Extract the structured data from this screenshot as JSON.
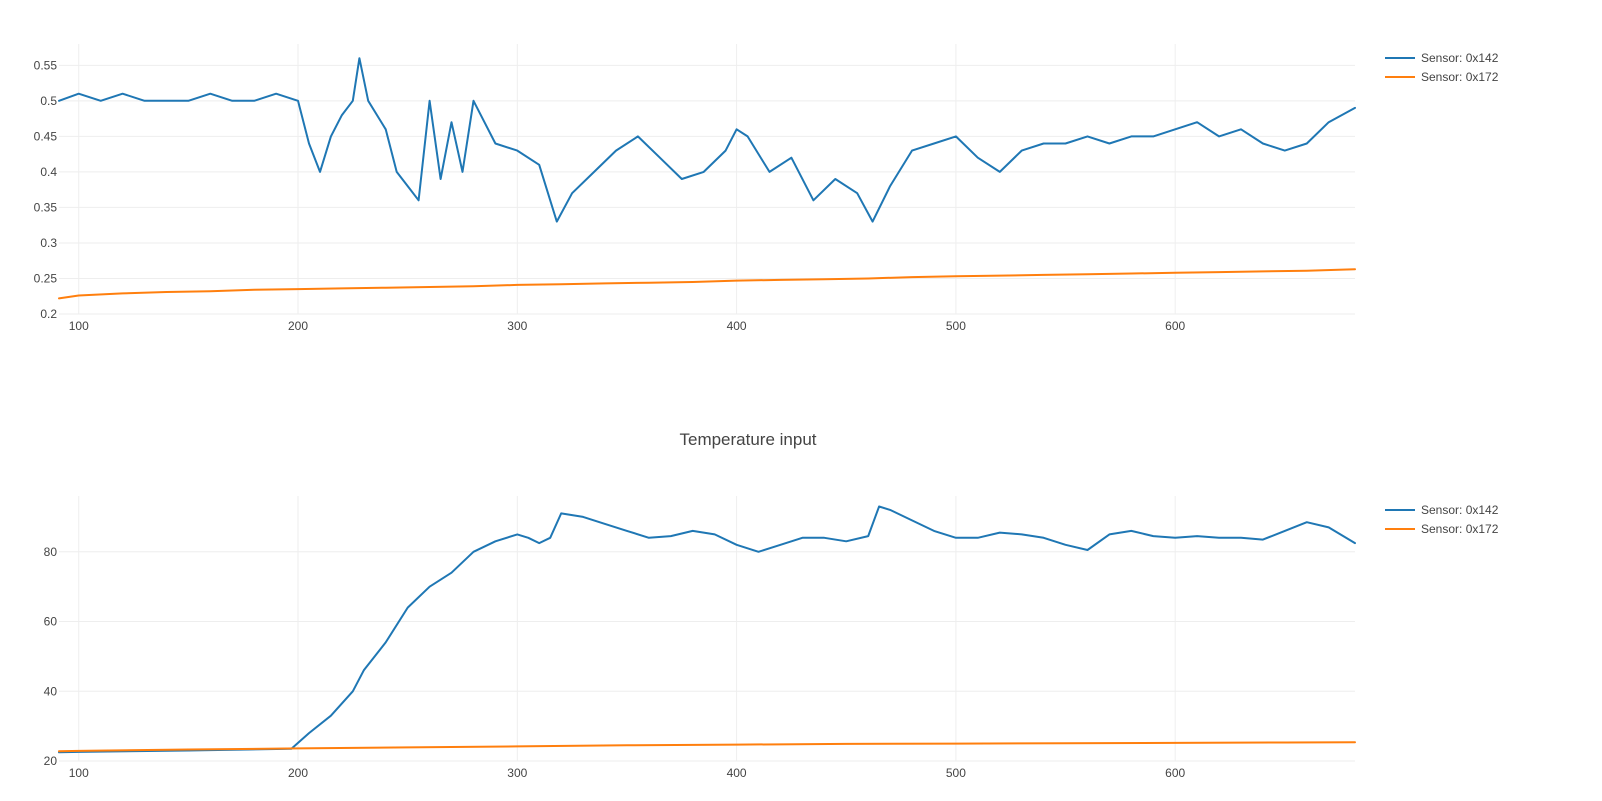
{
  "chart_data": [
    {
      "type": "line",
      "title": "",
      "xlabel": "",
      "ylabel": "",
      "xlim": [
        91,
        682
      ],
      "ylim": [
        0.2,
        0.58
      ],
      "xticks": [
        100,
        200,
        300,
        400,
        500,
        600
      ],
      "yticks": [
        0.2,
        0.25,
        0.3,
        0.35,
        0.4,
        0.45,
        0.5,
        0.55
      ],
      "grid": true,
      "legend": "top-right",
      "series": [
        {
          "name": "Sensor: 0x142",
          "color": "#1f77b4",
          "x": [
            91,
            100,
            110,
            120,
            130,
            140,
            150,
            160,
            170,
            180,
            190,
            200,
            205,
            210,
            215,
            220,
            225,
            228,
            232,
            240,
            245,
            250,
            255,
            260,
            265,
            270,
            275,
            280,
            290,
            300,
            310,
            318,
            325,
            335,
            345,
            355,
            365,
            375,
            385,
            395,
            400,
            405,
            415,
            425,
            435,
            445,
            455,
            462,
            470,
            480,
            490,
            500,
            510,
            520,
            530,
            540,
            550,
            560,
            570,
            580,
            590,
            600,
            610,
            620,
            630,
            640,
            650,
            660,
            670,
            682
          ],
          "y": [
            0.5,
            0.51,
            0.5,
            0.51,
            0.5,
            0.5,
            0.5,
            0.51,
            0.5,
            0.5,
            0.51,
            0.5,
            0.44,
            0.4,
            0.45,
            0.48,
            0.5,
            0.56,
            0.5,
            0.46,
            0.4,
            0.38,
            0.36,
            0.5,
            0.39,
            0.47,
            0.4,
            0.5,
            0.44,
            0.43,
            0.41,
            0.33,
            0.37,
            0.4,
            0.43,
            0.45,
            0.42,
            0.39,
            0.4,
            0.43,
            0.46,
            0.45,
            0.4,
            0.42,
            0.36,
            0.39,
            0.37,
            0.33,
            0.38,
            0.43,
            0.44,
            0.45,
            0.42,
            0.4,
            0.43,
            0.44,
            0.44,
            0.45,
            0.44,
            0.45,
            0.45,
            0.46,
            0.47,
            0.45,
            0.46,
            0.44,
            0.43,
            0.44,
            0.47,
            0.49
          ]
        },
        {
          "name": "Sensor: 0x172",
          "color": "#ff7f0e",
          "x": [
            91,
            100,
            120,
            140,
            160,
            180,
            200,
            220,
            240,
            260,
            280,
            300,
            320,
            340,
            360,
            380,
            400,
            420,
            440,
            460,
            480,
            500,
            520,
            540,
            560,
            580,
            600,
            620,
            640,
            660,
            682
          ],
          "y": [
            0.222,
            0.226,
            0.229,
            0.231,
            0.232,
            0.234,
            0.235,
            0.236,
            0.237,
            0.238,
            0.239,
            0.241,
            0.242,
            0.243,
            0.244,
            0.245,
            0.247,
            0.248,
            0.249,
            0.25,
            0.252,
            0.253,
            0.254,
            0.255,
            0.256,
            0.257,
            0.258,
            0.259,
            0.26,
            0.261,
            0.263
          ]
        }
      ]
    },
    {
      "type": "line",
      "title": "Temperature input",
      "xlabel": "",
      "ylabel": "",
      "xlim": [
        91,
        682
      ],
      "ylim": [
        20,
        96
      ],
      "xticks": [
        100,
        200,
        300,
        400,
        500,
        600
      ],
      "yticks": [
        20,
        40,
        60,
        80
      ],
      "grid": true,
      "legend": "top-right",
      "series": [
        {
          "name": "Sensor: 0x142",
          "color": "#1f77b4",
          "x": [
            91,
            100,
            150,
            197,
            205,
            215,
            225,
            230,
            240,
            250,
            260,
            270,
            280,
            290,
            300,
            305,
            310,
            315,
            320,
            330,
            340,
            350,
            360,
            370,
            380,
            390,
            400,
            410,
            420,
            430,
            440,
            450,
            460,
            465,
            470,
            480,
            490,
            500,
            510,
            520,
            530,
            540,
            550,
            560,
            570,
            580,
            590,
            600,
            610,
            620,
            630,
            640,
            650,
            660,
            670,
            682
          ],
          "y": [
            22.5,
            22.6,
            23.0,
            23.5,
            28,
            33,
            40,
            46,
            54,
            64,
            70,
            74,
            80,
            83,
            85,
            84,
            82.5,
            84,
            91,
            90,
            88,
            86,
            84,
            84.5,
            86,
            85,
            82,
            80,
            82,
            84,
            84,
            83,
            84.5,
            93,
            92,
            89,
            86,
            84,
            84,
            85.5,
            85,
            84,
            82,
            80.5,
            85,
            86,
            84.5,
            84,
            84.5,
            84,
            84,
            83.5,
            86,
            88.5,
            87,
            82.5
          ]
        },
        {
          "name": "Sensor: 0x172",
          "color": "#ff7f0e",
          "x": [
            91,
            100,
            150,
            200,
            250,
            300,
            350,
            400,
            450,
            500,
            550,
            600,
            650,
            682
          ],
          "y": [
            22.8,
            22.9,
            23.3,
            23.6,
            23.9,
            24.2,
            24.5,
            24.7,
            24.9,
            25.0,
            25.1,
            25.2,
            25.3,
            25.4
          ]
        }
      ]
    }
  ]
}
